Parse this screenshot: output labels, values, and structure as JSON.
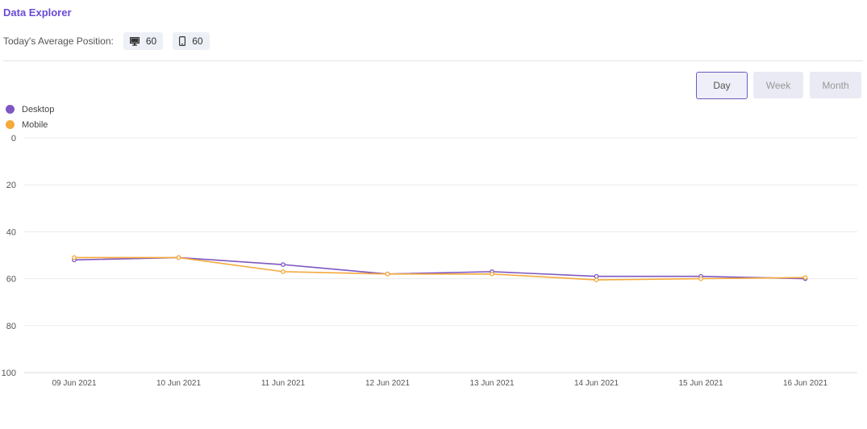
{
  "header": {
    "title": "Data Explorer",
    "avg_label": "Today's Average Position:",
    "desktop_value": "60",
    "mobile_value": "60"
  },
  "period_buttons": {
    "day": "Day",
    "week": "Week",
    "month": "Month",
    "active": "Day"
  },
  "colors": {
    "desktop": "#7E57C2",
    "mobile": "#F5A93B",
    "accent": "#6A4BD6"
  },
  "chart_data": {
    "type": "line",
    "categories": [
      "09 Jun 2021",
      "10 Jun 2021",
      "11 Jun 2021",
      "12 Jun 2021",
      "13 Jun 2021",
      "14 Jun 2021",
      "15 Jun 2021",
      "16 Jun 2021"
    ],
    "series": [
      {
        "name": "Desktop",
        "values": [
          52,
          51,
          54,
          58,
          57,
          59,
          59,
          60
        ]
      },
      {
        "name": "Mobile",
        "values": [
          51,
          51,
          57,
          58,
          58,
          60.5,
          60,
          59.5
        ]
      }
    ],
    "ylim": [
      0,
      100
    ],
    "y_inverted": true,
    "y_ticks": [
      "0",
      "20",
      "40",
      "60",
      "80",
      "100"
    ],
    "grid": true,
    "legend_position": "top-left",
    "title": "",
    "xlabel": "",
    "ylabel": ""
  }
}
